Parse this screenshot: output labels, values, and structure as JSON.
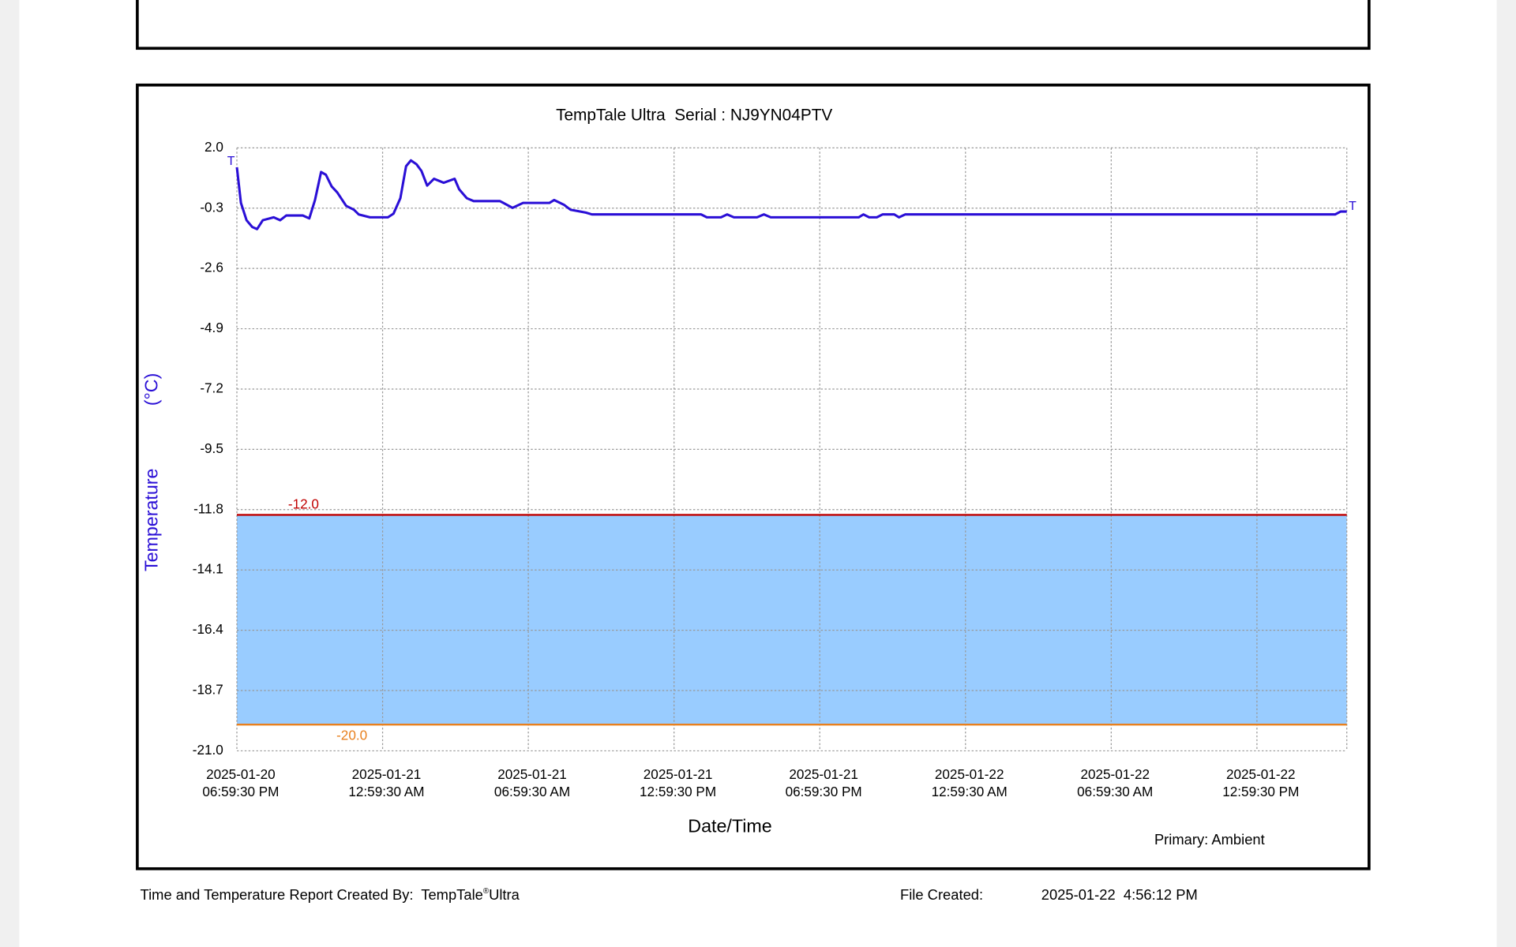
{
  "chart_data": {
    "type": "line",
    "title": "TempTale Ultra  Serial : NJ9YN04PTV",
    "xlabel": "Date/Time",
    "ylabel": "Temperature",
    "yunit": "(°C)",
    "end_marker": "T",
    "series": [
      {
        "name": "Primary: Ambient",
        "color": "#2a0fd6",
        "x": [
          "2025-01-20T18:59:30",
          "2025-01-20T19:09:30",
          "2025-01-20T19:23:30",
          "2025-01-20T19:37:30",
          "2025-01-20T19:49:30",
          "2025-01-20T20:03:30",
          "2025-01-20T20:30:30",
          "2025-01-20T20:46:30",
          "2025-01-20T21:01:30",
          "2025-01-20T21:42:30",
          "2025-01-20T21:58:30",
          "2025-01-20T22:12:30",
          "2025-01-20T22:27:30",
          "2025-01-20T22:39:30",
          "2025-01-20T22:53:30",
          "2025-01-20T23:07:30",
          "2025-01-20T23:29:30",
          "2025-01-20T23:48:30",
          "2025-01-21T00:00:30",
          "2025-01-21T00:28:30",
          "2025-01-21T01:12:30",
          "2025-01-21T01:26:30",
          "2025-01-21T01:43:30",
          "2025-01-21T01:57:30",
          "2025-01-21T02:09:30",
          "2025-01-21T02:23:30",
          "2025-01-21T02:35:30",
          "2025-01-21T02:49:30",
          "2025-01-21T03:06:30",
          "2025-01-21T03:30:30",
          "2025-01-21T03:57:30",
          "2025-01-21T04:08:30",
          "2025-01-21T04:27:30",
          "2025-01-21T04:44:30",
          "2025-01-21T05:49:30",
          "2025-01-21T06:20:30",
          "2025-01-21T06:46:30",
          "2025-01-21T07:51:30",
          "2025-01-21T08:03:30",
          "2025-01-21T08:27:30",
          "2025-01-21T08:43:30",
          "2025-01-21T09:21:30",
          "2025-01-21T09:36:30",
          "2025-01-21T14:06:30",
          "2025-01-21T14:20:30",
          "2025-01-21T14:55:30",
          "2025-01-21T15:10:30",
          "2025-01-21T15:27:30",
          "2025-01-21T16:24:30",
          "2025-01-21T16:41:30",
          "2025-01-21T16:58:30",
          "2025-01-21T20:35:30",
          "2025-01-21T20:47:30",
          "2025-01-21T21:01:30",
          "2025-01-21T21:20:30",
          "2025-01-21T21:34:30",
          "2025-01-21T22:03:30",
          "2025-01-21T22:15:30",
          "2025-01-21T22:30:30",
          "2025-01-22T16:12:30",
          "2025-01-22T16:26:30",
          "2025-01-22T16:41:30"
        ],
        "values": [
          1.26,
          -0.1,
          -0.76,
          -1.02,
          -1.1,
          -0.76,
          -0.65,
          -0.76,
          -0.58,
          -0.58,
          -0.69,
          0.01,
          1.08,
          0.97,
          0.53,
          0.3,
          -0.21,
          -0.36,
          -0.54,
          -0.65,
          -0.65,
          -0.51,
          0.08,
          1.3,
          1.52,
          1.37,
          1.12,
          0.56,
          0.82,
          0.67,
          0.82,
          0.42,
          0.08,
          -0.03,
          -0.03,
          -0.29,
          -0.1,
          -0.1,
          0.01,
          -0.17,
          -0.36,
          -0.47,
          -0.54,
          -0.54,
          -0.65,
          -0.65,
          -0.54,
          -0.65,
          -0.65,
          -0.54,
          -0.65,
          -0.65,
          -0.54,
          -0.65,
          -0.65,
          -0.54,
          -0.54,
          -0.65,
          -0.54,
          -0.54,
          -0.43,
          -0.43
        ]
      }
    ],
    "xlim": [
      "2025-01-20T18:59:30",
      "2025-01-22T16:41:30"
    ],
    "xticks": [
      {
        "value": "2025-01-20T18:59:30",
        "label": [
          "2025-01-20",
          "06:59:30 PM"
        ]
      },
      {
        "value": "2025-01-21T00:59:30",
        "label": [
          "2025-01-21",
          "12:59:30 AM"
        ]
      },
      {
        "value": "2025-01-21T06:59:30",
        "label": [
          "2025-01-21",
          "06:59:30 AM"
        ]
      },
      {
        "value": "2025-01-21T12:59:30",
        "label": [
          "2025-01-21",
          "12:59:30 PM"
        ]
      },
      {
        "value": "2025-01-21T18:59:30",
        "label": [
          "2025-01-21",
          "06:59:30 PM"
        ]
      },
      {
        "value": "2025-01-22T00:59:30",
        "label": [
          "2025-01-22",
          "12:59:30 AM"
        ]
      },
      {
        "value": "2025-01-22T06:59:30",
        "label": [
          "2025-01-22",
          "06:59:30 AM"
        ]
      },
      {
        "value": "2025-01-22T12:59:30",
        "label": [
          "2025-01-22",
          "12:59:30 PM"
        ]
      }
    ],
    "ylim": [
      -21.0,
      2.0
    ],
    "yticks": [
      {
        "value": 2,
        "label": "2.0"
      },
      -0.3,
      -2.6,
      -4.9,
      -7.2,
      -9.5,
      -11.8,
      -14.1,
      -16.4,
      -18.7,
      {
        "value": -21,
        "label": "-21.0"
      }
    ],
    "grid": true,
    "band_color": "#99ccff",
    "thresholds": [
      {
        "value": -12,
        "label": "-12.0",
        "color": "#c00000"
      },
      {
        "value": -20,
        "label": "-20.0",
        "color": "#e8801e"
      }
    ]
  },
  "footer": {
    "created_by_label": "Time and Temperature Report Created By:",
    "product": "TempTale",
    "mark": "®",
    "product_suffix": "Ultra",
    "file_created_label": "File Created:",
    "file_created": "2025-01-22  4:56:12 PM"
  }
}
